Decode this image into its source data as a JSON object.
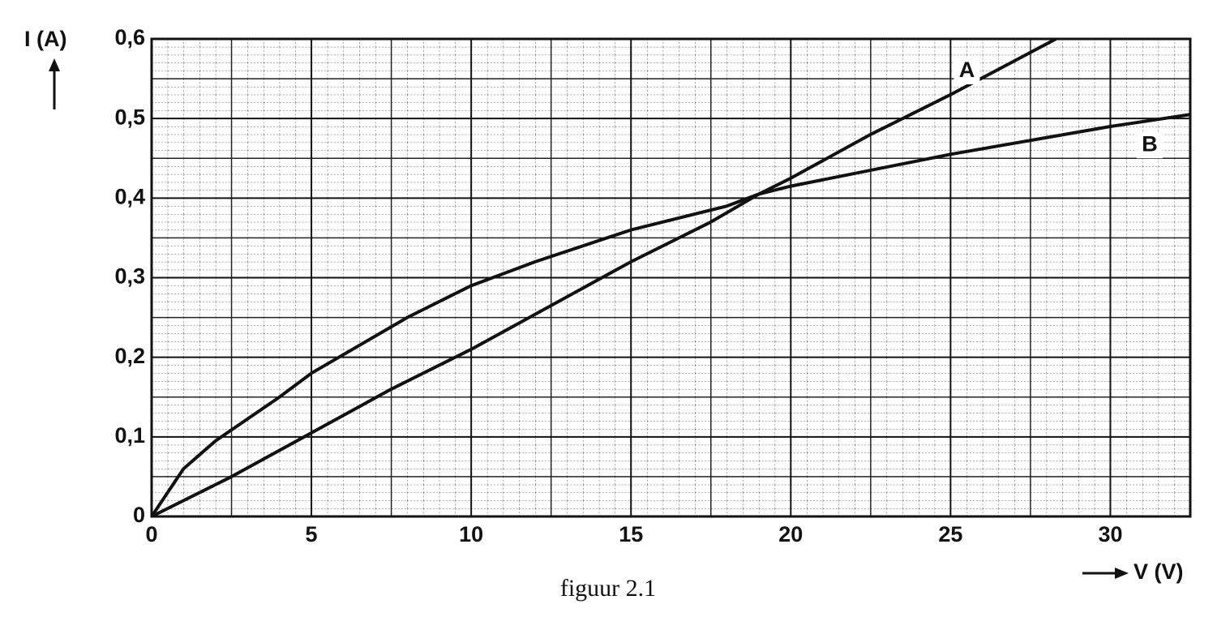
{
  "chart_data": {
    "type": "line",
    "caption": "figuur 2.1",
    "ylabel": "I (A)",
    "xlabel": "V (V)",
    "xlim": [
      0,
      32.5
    ],
    "ylim": [
      0,
      0.6
    ],
    "xticks": [
      0,
      5,
      10,
      15,
      20,
      25,
      30
    ],
    "yticks": [
      0,
      {
        "value": 0.1,
        "label": "0,1"
      },
      {
        "value": 0.2,
        "label": "0,2"
      },
      {
        "value": 0.3,
        "label": "0,3"
      },
      {
        "value": 0.4,
        "label": "0,4"
      },
      {
        "value": 0.5,
        "label": "0,5"
      },
      {
        "value": 0.6,
        "label": "0,6"
      }
    ],
    "grid": true,
    "series": [
      {
        "name": "A",
        "color": "#111111",
        "x": [
          0,
          2.5,
          5,
          7.5,
          10,
          12.5,
          15,
          17.5,
          19,
          20,
          22.5,
          25,
          28.3
        ],
        "values": [
          0,
          0.05,
          0.105,
          0.16,
          0.21,
          0.265,
          0.32,
          0.37,
          0.405,
          0.425,
          0.48,
          0.53,
          0.6
        ]
      },
      {
        "name": "B",
        "color": "#111111",
        "x": [
          0,
          1,
          2,
          4,
          5,
          8,
          10,
          12,
          15,
          18,
          19,
          20,
          25,
          30,
          32.5
        ],
        "values": [
          0,
          0.06,
          0.095,
          0.15,
          0.18,
          0.25,
          0.29,
          0.32,
          0.36,
          0.39,
          0.405,
          0.415,
          0.455,
          0.49,
          0.505
        ]
      }
    ]
  }
}
